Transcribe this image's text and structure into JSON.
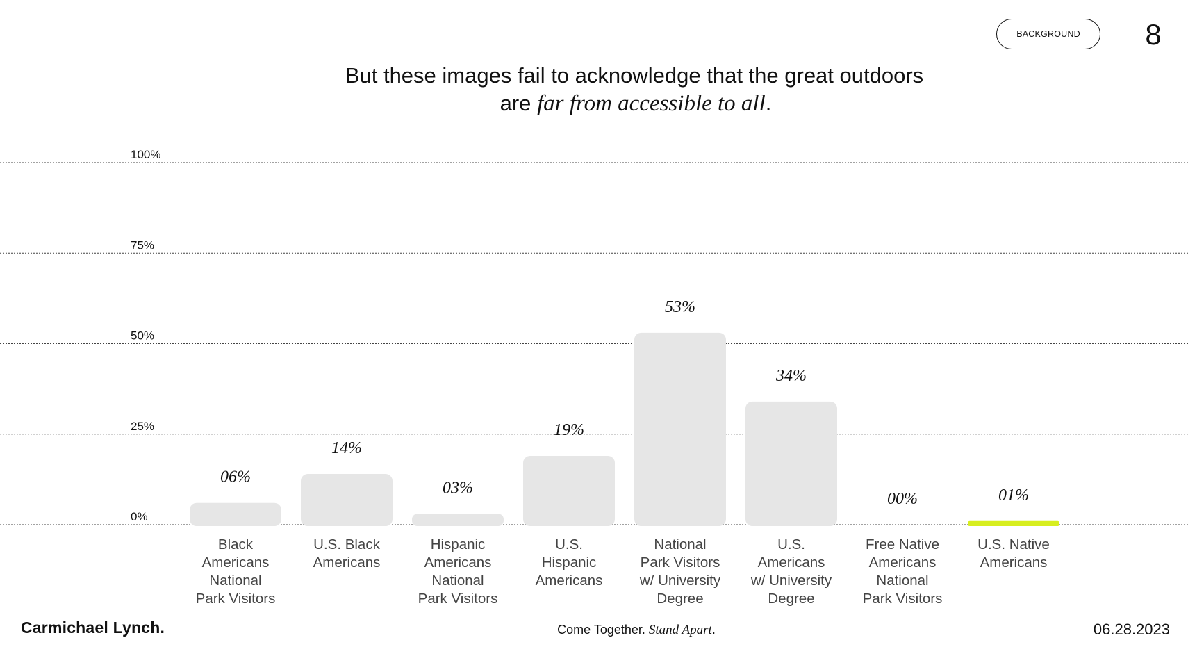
{
  "header": {
    "badge_label": "BACKGROUND",
    "page_number": "8",
    "headline_line1": "But these images fail to acknowledge that the great outdoors",
    "headline_line2_prefix": "are ",
    "headline_line2_emphasis": "far from accessible to all",
    "headline_line2_suffix": "."
  },
  "chart_data": {
    "type": "bar",
    "categories": [
      "Black Americans National Park Visitors",
      "U.S. Black Americans",
      "Hispanic Americans National Park Visitors",
      "U.S. Hispanic Americans",
      "National Park Visitors w/ University Degree",
      "U.S. Americans w/ University Degree",
      "Free Native Americans National Park Visitors",
      "U.S. Native Americans"
    ],
    "category_lines": [
      [
        "Black",
        "Americans",
        "National",
        "Park Visitors"
      ],
      [
        "U.S. Black",
        "Americans"
      ],
      [
        "Hispanic",
        "Americans",
        "National",
        "Park Visitors"
      ],
      [
        "U.S.",
        "Hispanic",
        "Americans"
      ],
      [
        "National",
        "Park Visitors",
        "w/ University",
        "Degree"
      ],
      [
        "U.S.",
        "Americans",
        "w/ University",
        "Degree"
      ],
      [
        "Free Native",
        "Americans",
        "National",
        "Park Visitors"
      ],
      [
        "U.S. Native",
        "Americans"
      ]
    ],
    "values": [
      6,
      14,
      3,
      19,
      53,
      34,
      0,
      1
    ],
    "value_labels": [
      "06%",
      "14%",
      "03%",
      "19%",
      "53%",
      "34%",
      "00%",
      "01%"
    ],
    "bar_colors": [
      "#e6e6e6",
      "#e6e6e6",
      "#e6e6e6",
      "#e6e6e6",
      "#e6e6e6",
      "#e6e6e6",
      "#e6e6e6",
      "#d7ee1f"
    ],
    "y_ticks": [
      0,
      25,
      50,
      75,
      100
    ],
    "y_tick_labels": [
      "0%",
      "25%",
      "50%",
      "75%",
      "100%"
    ],
    "ylim": [
      0,
      100
    ],
    "grid": true,
    "gridline_style": "dotted",
    "title": "",
    "xlabel": "",
    "ylabel": ""
  },
  "footer": {
    "brand": "Carmichael Lynch.",
    "tagline_prefix": "Come Together. ",
    "tagline_emphasis": "Stand Apart",
    "tagline_suffix": ".",
    "date": "06.28.2023"
  }
}
